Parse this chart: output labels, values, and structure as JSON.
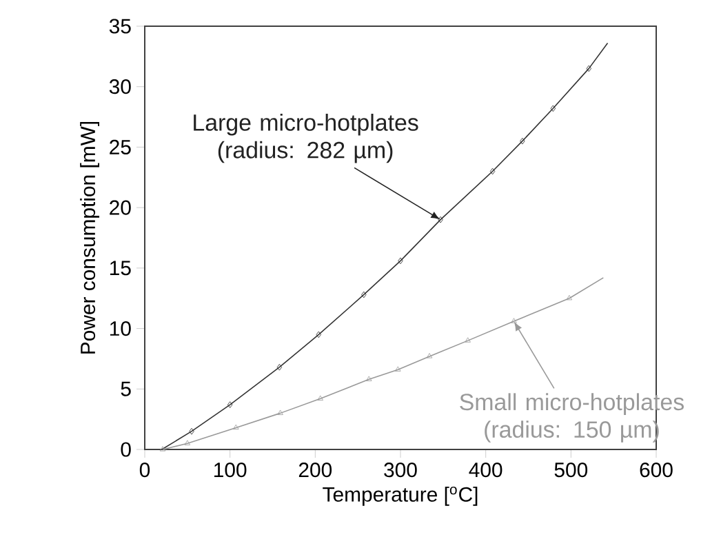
{
  "chart_data": {
    "type": "line",
    "xlabel": "Temperature [$^{o}$C]",
    "ylabel": "Power consumption [mW]",
    "xlim": [
      0,
      600
    ],
    "xticks": [
      0,
      100,
      200,
      300,
      400,
      500,
      600
    ],
    "ylim": [
      0,
      35
    ],
    "yticks": [
      0,
      5,
      10,
      15,
      20,
      25,
      30,
      35
    ],
    "grid": false,
    "series": [
      {
        "color": "#333333",
        "marker": "none",
        "x": [
          20,
          55,
          100,
          158,
          204,
          257,
          300,
          347,
          408,
          443,
          479,
          521,
          543
        ],
        "values": [
          0,
          1.5,
          3.7,
          6.8,
          9.5,
          12.8,
          15.6,
          19.0,
          23.0,
          25.5,
          28.2,
          31.5,
          33.6
        ]
      },
      {
        "type": "scatter",
        "color": "#222222",
        "marker": "diamond",
        "x": [
          55,
          100,
          158,
          204,
          257,
          300,
          347,
          408,
          443,
          479,
          521
        ],
        "values": [
          1.5,
          3.7,
          6.8,
          9.5,
          12.8,
          15.6,
          19.0,
          23.0,
          25.5,
          28.2,
          31.5
        ]
      },
      {
        "color": "#999999",
        "marker": "none",
        "x": [
          21,
          50,
          107,
          159,
          206,
          263,
          297,
          334,
          379,
          433,
          498,
          538
        ],
        "values": [
          0,
          0.5,
          1.8,
          3.0,
          4.2,
          5.8,
          6.6,
          7.7,
          9.0,
          10.6,
          12.5,
          14.2
        ]
      },
      {
        "type": "scatter",
        "color": "#999999",
        "marker": "triangle",
        "x": [
          21,
          50,
          107,
          159,
          206,
          263,
          297,
          334,
          379,
          433,
          498
        ],
        "values": [
          0,
          0.5,
          1.8,
          3.0,
          4.2,
          5.8,
          6.6,
          7.7,
          9.0,
          10.6,
          12.5
        ]
      }
    ],
    "annotations": [
      {
        "text": "Large micro-hotplates (radius: 282 µm)",
        "x": 347,
        "y": 19.0
      },
      {
        "text": "Small micro-hotplates (radius: 150 µm)",
        "x": 433,
        "y": 10.6
      }
    ]
  }
}
